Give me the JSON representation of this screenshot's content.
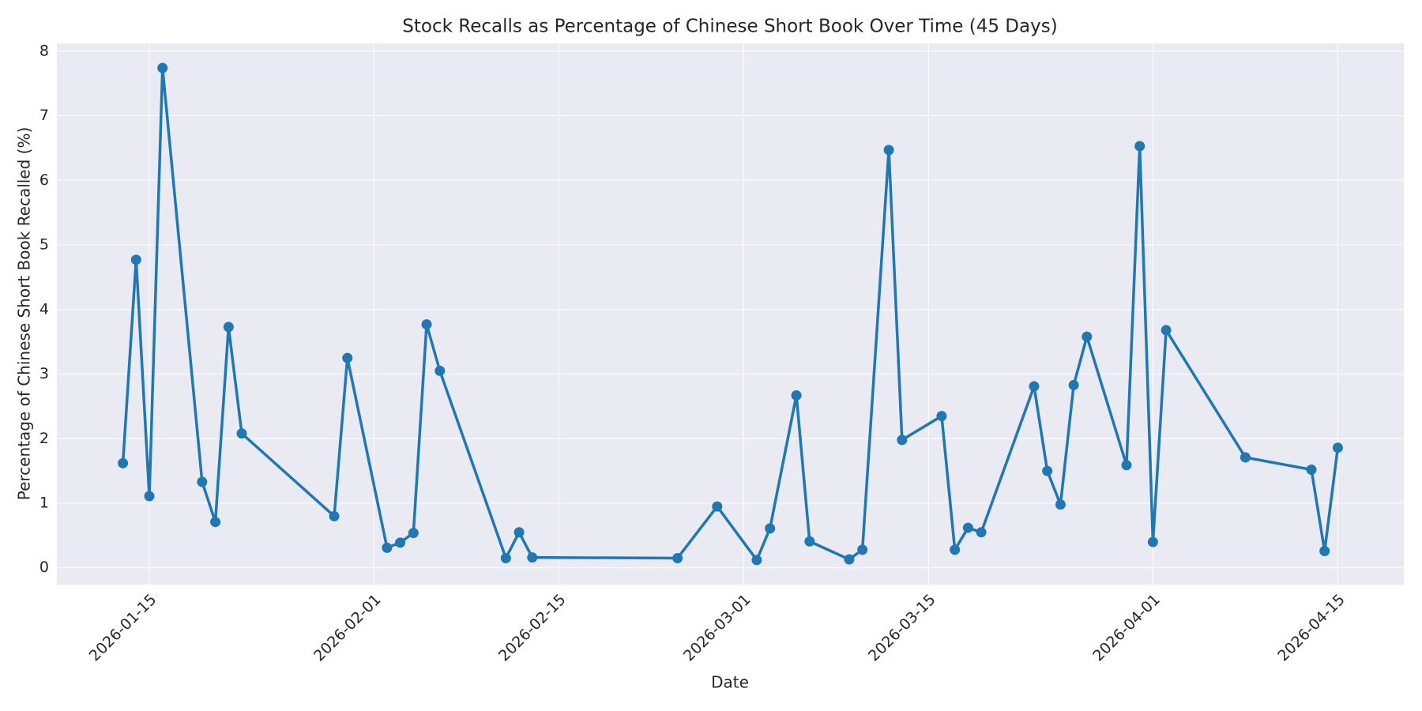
{
  "chart_data": {
    "type": "line",
    "title": "Stock Recalls as Percentage of Chinese Short Book Over Time (45 Days)",
    "xlabel": "Date",
    "ylabel": "Percentage of Chinese Short Book Recalled (%)",
    "x": [
      "2026-01-13",
      "2026-01-14",
      "2026-01-15",
      "2026-01-16",
      "2026-01-19",
      "2026-01-20",
      "2026-01-21",
      "2026-01-22",
      "2026-01-29",
      "2026-01-30",
      "2026-02-02",
      "2026-02-03",
      "2026-02-04",
      "2026-02-05",
      "2026-02-06",
      "2026-02-11",
      "2026-02-12",
      "2026-02-13",
      "2026-02-24",
      "2026-02-27",
      "2026-03-02",
      "2026-03-03",
      "2026-03-05",
      "2026-03-06",
      "2026-03-09",
      "2026-03-10",
      "2026-03-12",
      "2026-03-13",
      "2026-03-16",
      "2026-03-17",
      "2026-03-18",
      "2026-03-19",
      "2026-03-23",
      "2026-03-24",
      "2026-03-25",
      "2026-03-26",
      "2026-03-27",
      "2026-03-30",
      "2026-03-31",
      "2026-04-01",
      "2026-04-02",
      "2026-04-08",
      "2026-04-13",
      "2026-04-14",
      "2026-04-15"
    ],
    "series": [
      {
        "color": "#1f77b4",
        "values": [
          1.62,
          4.77,
          1.11,
          7.74,
          1.33,
          0.71,
          3.73,
          2.08,
          0.8,
          3.25,
          0.31,
          0.39,
          0.54,
          3.77,
          3.05,
          0.15,
          0.55,
          0.16,
          0.15,
          0.95,
          0.12,
          0.61,
          2.67,
          0.41,
          0.13,
          0.28,
          6.47,
          1.98,
          2.35,
          0.28,
          0.62,
          0.55,
          2.81,
          1.5,
          0.98,
          2.83,
          3.58,
          1.59,
          6.53,
          0.4,
          3.68,
          1.71,
          1.52,
          0.26,
          1.86
        ]
      }
    ],
    "xlim": [
      "2026-01-08",
      "2026-04-20"
    ],
    "xticks": [
      "2026-01-15",
      "2026-02-01",
      "2026-02-15",
      "2026-03-01",
      "2026-03-15",
      "2026-04-01",
      "2026-04-15"
    ],
    "ylim": [
      -0.26,
      8.12
    ],
    "yticks": [
      0,
      1,
      2,
      3,
      4,
      5,
      6,
      7,
      8
    ],
    "grid": true
  }
}
